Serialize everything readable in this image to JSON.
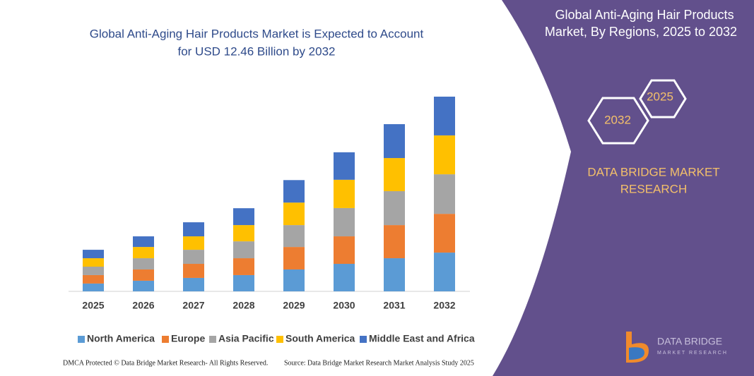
{
  "chart_data": {
    "type": "stacked_bar",
    "title": [
      "Global Anti-Aging Hair Products Market is Expected to Account",
      "for USD 12.46 Billion by 2032"
    ],
    "categories": [
      "2025",
      "2026",
      "2027",
      "2028",
      "2029",
      "2030",
      "2031",
      "2032"
    ],
    "series": [
      {
        "name": "North America",
        "color": "#5b9bd5",
        "values": [
          0.5,
          0.68,
          0.86,
          1.04,
          1.4,
          1.76,
          2.12,
          2.48
        ]
      },
      {
        "name": "Europe",
        "color": "#ed7d31",
        "values": [
          0.54,
          0.72,
          0.9,
          1.08,
          1.44,
          1.76,
          2.12,
          2.48
        ]
      },
      {
        "name": "Asia Pacific",
        "color": "#a5a5a5",
        "values": [
          0.54,
          0.72,
          0.9,
          1.08,
          1.4,
          1.81,
          2.17,
          2.53
        ]
      },
      {
        "name": "South America",
        "color": "#ffc000",
        "values": [
          0.54,
          0.72,
          0.86,
          1.04,
          1.44,
          1.81,
          2.12,
          2.49
        ]
      },
      {
        "name": "Middle East and Africa",
        "color": "#4472c4",
        "values": [
          0.54,
          0.68,
          0.9,
          1.08,
          1.44,
          1.76,
          2.17,
          2.48
        ]
      }
    ],
    "legend": "bottom"
  },
  "panel": {
    "title": [
      "Global Anti-Aging Hair Products",
      "Market, By Regions, 2025 to 2032"
    ],
    "hexagons": [
      "2025",
      "2032"
    ],
    "brand": [
      "DATA BRIDGE MARKET",
      "RESEARCH"
    ],
    "logo": [
      "DATA BRIDGE",
      "MARKET RESEARCH"
    ]
  },
  "footer": {
    "left": "DMCA Protected © Data Bridge Market Research- All Rights Reserved.",
    "right": "Source: Data Bridge Market Research Market Analysis Study 2025"
  }
}
